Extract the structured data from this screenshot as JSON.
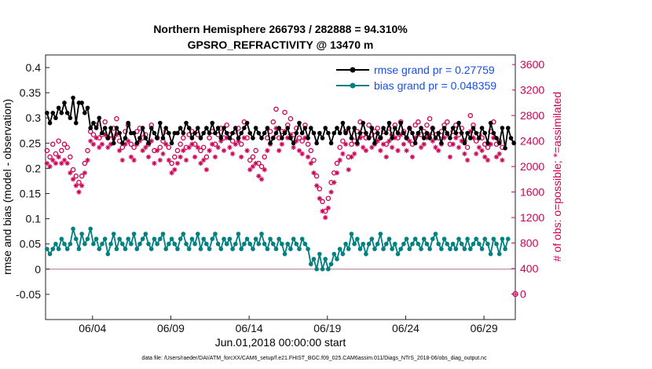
{
  "chart_data": {
    "type": "line",
    "title_line1": "Northern Hemisphere 266793 / 282888 = 94.310%",
    "title_line2": "GPSRO_REFRACTIVITY @ 13470 m",
    "xlabel": "Jun.01,2018 00:00:00 start",
    "ylabel": "rmse and bias (model - observation)",
    "ylabel_right": "# of obs: o=possible; *=assimilated",
    "footer": "data file: /Users/raeder/DAI/ATM_forcXX/CAM6_setup/f.e21.FHIST_BGC.f09_025.CAM6assim.011/Diags_NTrS_2018-06/obs_diag_output.nc",
    "xlim": [
      0.5,
      30.5
    ],
    "ylim": [
      -0.1,
      0.425
    ],
    "ylim_right": [
      -400,
      3750
    ],
    "x_ticks": [
      {
        "pos": 3.5,
        "label": "06/04"
      },
      {
        "pos": 8.5,
        "label": "06/09"
      },
      {
        "pos": 13.5,
        "label": "06/14"
      },
      {
        "pos": 18.5,
        "label": "06/19"
      },
      {
        "pos": 23.5,
        "label": "06/24"
      },
      {
        "pos": 28.5,
        "label": "06/29"
      }
    ],
    "y_ticks": [
      {
        "v": 0.4,
        "label": "0.4"
      },
      {
        "v": 0.35,
        "label": "0.35"
      },
      {
        "v": 0.3,
        "label": "0.3"
      },
      {
        "v": 0.25,
        "label": "0.25"
      },
      {
        "v": 0.2,
        "label": "0.2"
      },
      {
        "v": 0.15,
        "label": "0.15"
      },
      {
        "v": 0.1,
        "label": "0.1"
      },
      {
        "v": 0.05,
        "label": "0.05"
      },
      {
        "v": 0,
        "label": "0"
      },
      {
        "v": -0.05,
        "label": "-0.05"
      }
    ],
    "y_ticks_right": [
      {
        "v": 3600,
        "label": "3600"
      },
      {
        "v": 3200,
        "label": "3200"
      },
      {
        "v": 2800,
        "label": "2800"
      },
      {
        "v": 2400,
        "label": "2400"
      },
      {
        "v": 2000,
        "label": "2000"
      },
      {
        "v": 1600,
        "label": "1600"
      },
      {
        "v": 1200,
        "label": "1200"
      },
      {
        "v": 800,
        "label": "800"
      },
      {
        "v": 400,
        "label": "400"
      },
      {
        "v": 0,
        "label": "0"
      }
    ],
    "legend": [
      {
        "name": "rmse grand pr = 0.27759",
        "color": "#000000"
      },
      {
        "name": "bias grand pr = 0.048359",
        "color": "#008080"
      }
    ],
    "colors": {
      "rmse": "#000000",
      "bias": "#008080",
      "counts": "#cc0055",
      "zero": "#c8a0a8"
    },
    "rmse": [
      0.31,
      0.29,
      0.31,
      0.3,
      0.32,
      0.31,
      0.33,
      0.31,
      0.3,
      0.34,
      0.29,
      0.33,
      0.33,
      0.31,
      0.32,
      0.28,
      0.29,
      0.28,
      0.3,
      0.27,
      0.28,
      0.26,
      0.28,
      0.25,
      0.28,
      0.27,
      0.25,
      0.26,
      0.29,
      0.27,
      0.27,
      0.25,
      0.26,
      0.28,
      0.26,
      0.25,
      0.28,
      0.27,
      0.26,
      0.29,
      0.26,
      0.28,
      0.27,
      0.25,
      0.27,
      0.27,
      0.28,
      0.27,
      0.29,
      0.28,
      0.26,
      0.27,
      0.28,
      0.26,
      0.27,
      0.28,
      0.27,
      0.29,
      0.27,
      0.28,
      0.26,
      0.28,
      0.27,
      0.26,
      0.27,
      0.28,
      0.26,
      0.27,
      0.28,
      0.29,
      0.27,
      0.26,
      0.28,
      0.27,
      0.26,
      0.27,
      0.28,
      0.25,
      0.26,
      0.27,
      0.28,
      0.26,
      0.27,
      0.28,
      0.26,
      0.25,
      0.27,
      0.29,
      0.27,
      0.28,
      0.26,
      0.28,
      0.27,
      0.25,
      0.27,
      0.26,
      0.28,
      0.27,
      0.25,
      0.27,
      0.28,
      0.27,
      0.29,
      0.27,
      0.28,
      0.26,
      0.28,
      0.25,
      0.27,
      0.29,
      0.27,
      0.26,
      0.28,
      0.25,
      0.27,
      0.26,
      0.28,
      0.27,
      0.29,
      0.26,
      0.28,
      0.27,
      0.29,
      0.27,
      0.26,
      0.28,
      0.27,
      0.25,
      0.27,
      0.28,
      0.26,
      0.27,
      0.26,
      0.28,
      0.26,
      0.27,
      0.25,
      0.28,
      0.27,
      0.26,
      0.28,
      0.27,
      0.29,
      0.27,
      0.25,
      0.27,
      0.26,
      0.28,
      0.27,
      0.26,
      0.28,
      0.27,
      0.25,
      0.29,
      0.27,
      0.26,
      0.25,
      0.28,
      0.24,
      0.28,
      0.26,
      0.25
    ],
    "bias": [
      0.04,
      0.03,
      0.04,
      0.05,
      0.04,
      0.06,
      0.05,
      0.04,
      0.05,
      0.08,
      0.06,
      0.04,
      0.07,
      0.05,
      0.06,
      0.08,
      0.05,
      0.06,
      0.04,
      0.05,
      0.06,
      0.03,
      0.05,
      0.07,
      0.04,
      0.06,
      0.05,
      0.04,
      0.06,
      0.05,
      0.07,
      0.04,
      0.05,
      0.06,
      0.07,
      0.05,
      0.04,
      0.06,
      0.05,
      0.06,
      0.07,
      0.04,
      0.05,
      0.06,
      0.05,
      0.04,
      0.06,
      0.07,
      0.05,
      0.04,
      0.06,
      0.05,
      0.07,
      0.04,
      0.06,
      0.05,
      0.04,
      0.06,
      0.07,
      0.05,
      0.04,
      0.06,
      0.05,
      0.06,
      0.04,
      0.05,
      0.07,
      0.04,
      0.05,
      0.06,
      0.05,
      0.04,
      0.06,
      0.05,
      0.07,
      0.05,
      0.04,
      0.06,
      0.05,
      0.04,
      0.06,
      0.05,
      0.03,
      0.05,
      0.04,
      0.06,
      0.05,
      0.04,
      0.06,
      0.05,
      0.04,
      0.01,
      0.02,
      0.0,
      0.03,
      0.0,
      0.02,
      0.0,
      0.01,
      0.03,
      0.02,
      0.04,
      0.03,
      0.05,
      0.04,
      0.07,
      0.05,
      0.06,
      0.04,
      0.05,
      0.03,
      0.05,
      0.06,
      0.04,
      0.05,
      0.07,
      0.04,
      0.05,
      0.06,
      0.04,
      0.05,
      0.03,
      0.04,
      0.05,
      0.06,
      0.04,
      0.05,
      0.06,
      0.05,
      0.04,
      0.06,
      0.05,
      0.04,
      0.06,
      0.07,
      0.05,
      0.04,
      0.06,
      0.05,
      0.04,
      0.05,
      0.04,
      0.06,
      0.05,
      0.04,
      0.06,
      0.04,
      0.05,
      0.06,
      0.05,
      0.04,
      0.06,
      0.05,
      0.03,
      0.06,
      0.05,
      0.03,
      0.06,
      0.04,
      0.06
    ],
    "possible": [
      2250,
      2150,
      2350,
      2200,
      2400,
      2250,
      2350,
      2300,
      2150,
      1950,
      1850,
      1750,
      1850,
      2050,
      2250,
      2550,
      2500,
      2650,
      2450,
      2500,
      2700,
      2450,
      2500,
      2600,
      2750,
      2400,
      2300,
      2550,
      2650,
      2350,
      2300,
      2550,
      2600,
      2450,
      2500,
      2350,
      2650,
      2250,
      2450,
      2300,
      2400,
      2550,
      2300,
      2050,
      2150,
      2250,
      2350,
      2450,
      2300,
      2500,
      2550,
      2350,
      2500,
      2250,
      2300,
      2150,
      2450,
      2550,
      2350,
      2500,
      2600,
      2450,
      2650,
      2500,
      2400,
      2550,
      2600,
      2350,
      2700,
      2450,
      2100,
      2150,
      2250,
      2050,
      2000,
      2150,
      2450,
      2550,
      2700,
      2900,
      2450,
      2550,
      2850,
      2650,
      2750,
      2500,
      2600,
      2450,
      2400,
      2650,
      2350,
      2250,
      2100,
      1850,
      1650,
      1450,
      1300,
      1500,
      1750,
      1900,
      2050,
      2300,
      2400,
      2550,
      2150,
      2350,
      2400,
      2550,
      2700,
      2500,
      2450,
      2650,
      2500,
      2550,
      2600,
      2450,
      2550,
      2350,
      2600,
      2500,
      2650,
      2450,
      2700,
      2550,
      2450,
      2600,
      2350,
      2650,
      2700,
      2500,
      2550,
      2650,
      2750,
      2600,
      2500,
      2450,
      2550,
      2650,
      2700,
      2350,
      2550,
      2650,
      2500,
      2600,
      2400,
      2300,
      2800,
      2650,
      2400,
      2500,
      2450,
      2350,
      2300,
      2550,
      2700,
      2350,
      2400,
      2300
    ],
    "assimilated": [
      2050,
      2000,
      2100,
      2050,
      2150,
      2050,
      2100,
      2050,
      1900,
      1800,
      1700,
      1600,
      1700,
      1900,
      2100,
      2400,
      2350,
      2450,
      2300,
      2350,
      2500,
      2300,
      2350,
      2450,
      2500,
      2250,
      2100,
      2350,
      2400,
      2150,
      2100,
      2350,
      2400,
      2250,
      2300,
      2150,
      2400,
      2050,
      2250,
      2100,
      2200,
      2350,
      2100,
      1900,
      1950,
      2050,
      2150,
      2250,
      2100,
      2300,
      2350,
      2150,
      2300,
      2050,
      2100,
      1950,
      2250,
      2350,
      2150,
      2300,
      2400,
      2250,
      2450,
      2300,
      2200,
      2350,
      2400,
      2150,
      2450,
      2250,
      1950,
      2000,
      2050,
      1850,
      1800,
      1950,
      2250,
      2350,
      2450,
      2600,
      2250,
      2350,
      2550,
      2450,
      2500,
      2300,
      2400,
      2250,
      2200,
      2450,
      2150,
      2050,
      1900,
      1700,
      1500,
      1300,
      1200,
      1350,
      1600,
      1750,
      1900,
      2100,
      2200,
      2350,
      1950,
      2150,
      2200,
      2350,
      2450,
      2300,
      2250,
      2450,
      2300,
      2350,
      2400,
      2250,
      2350,
      2150,
      2400,
      2300,
      2450,
      2250,
      2500,
      2350,
      2250,
      2400,
      2150,
      2450,
      2500,
      2300,
      2350,
      2450,
      2500,
      2400,
      2300,
      2250,
      2350,
      2450,
      2500,
      2150,
      2350,
      2450,
      2300,
      2400,
      2200,
      2100,
      2550,
      2450,
      2200,
      2300,
      2250,
      2150,
      2100,
      2350,
      2450,
      2150,
      2200,
      2100
    ],
    "lone_point": {
      "v": 0,
      "label": "0"
    }
  }
}
